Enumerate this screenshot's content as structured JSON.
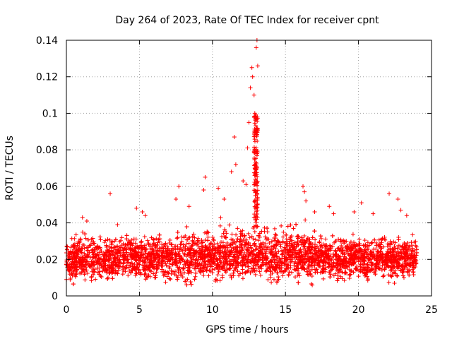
{
  "chart_data": {
    "type": "scatter",
    "title": "Day 264 of 2023, Rate Of TEC Index for receiver cpnt",
    "xlabel": "GPS time / hours",
    "ylabel": "ROTI / TECUs",
    "xlim": [
      0,
      25
    ],
    "ylim": [
      0,
      0.14
    ],
    "x_ticks": [
      "0",
      "5",
      "10",
      "15",
      "20",
      "25"
    ],
    "y_ticks": [
      "0",
      "0.02",
      "0.04",
      "0.06",
      "0.08",
      "0.1",
      "0.12",
      "0.14"
    ],
    "grid": true,
    "marker": "+",
    "series": [
      {
        "name": "ROTI",
        "color": "#ff0000",
        "x_range_hours": [
          0,
          24
        ],
        "typical_band": [
          0.005,
          0.035
        ],
        "highlighted_points": [
          {
            "x": 1.1,
            "y": 0.043
          },
          {
            "x": 1.4,
            "y": 0.041
          },
          {
            "x": 3.0,
            "y": 0.056
          },
          {
            "x": 3.5,
            "y": 0.039
          },
          {
            "x": 4.8,
            "y": 0.048
          },
          {
            "x": 5.2,
            "y": 0.046
          },
          {
            "x": 5.4,
            "y": 0.044
          },
          {
            "x": 7.7,
            "y": 0.06
          },
          {
            "x": 7.5,
            "y": 0.053
          },
          {
            "x": 8.4,
            "y": 0.049
          },
          {
            "x": 9.4,
            "y": 0.058
          },
          {
            "x": 9.5,
            "y": 0.065
          },
          {
            "x": 10.4,
            "y": 0.059
          },
          {
            "x": 10.8,
            "y": 0.053
          },
          {
            "x": 11.3,
            "y": 0.068
          },
          {
            "x": 11.5,
            "y": 0.087
          },
          {
            "x": 11.6,
            "y": 0.072
          },
          {
            "x": 12.1,
            "y": 0.063
          },
          {
            "x": 12.3,
            "y": 0.061
          },
          {
            "x": 12.4,
            "y": 0.081
          },
          {
            "x": 12.5,
            "y": 0.095
          },
          {
            "x": 12.6,
            "y": 0.114
          },
          {
            "x": 12.7,
            "y": 0.125
          },
          {
            "x": 12.75,
            "y": 0.12
          },
          {
            "x": 12.85,
            "y": 0.11
          },
          {
            "x": 12.9,
            "y": 0.1
          },
          {
            "x": 12.95,
            "y": 0.09
          },
          {
            "x": 13.0,
            "y": 0.08
          },
          {
            "x": 12.9,
            "y": 0.07
          },
          {
            "x": 13.0,
            "y": 0.136
          },
          {
            "x": 13.05,
            "y": 0.14
          },
          {
            "x": 13.1,
            "y": 0.126
          },
          {
            "x": 16.2,
            "y": 0.06
          },
          {
            "x": 16.3,
            "y": 0.057
          },
          {
            "x": 16.4,
            "y": 0.052
          },
          {
            "x": 17.0,
            "y": 0.046
          },
          {
            "x": 18.0,
            "y": 0.049
          },
          {
            "x": 18.3,
            "y": 0.045
          },
          {
            "x": 19.7,
            "y": 0.046
          },
          {
            "x": 20.2,
            "y": 0.051
          },
          {
            "x": 21.0,
            "y": 0.045
          },
          {
            "x": 22.1,
            "y": 0.056
          },
          {
            "x": 22.7,
            "y": 0.053
          },
          {
            "x": 22.9,
            "y": 0.047
          },
          {
            "x": 23.3,
            "y": 0.044
          }
        ]
      }
    ]
  }
}
